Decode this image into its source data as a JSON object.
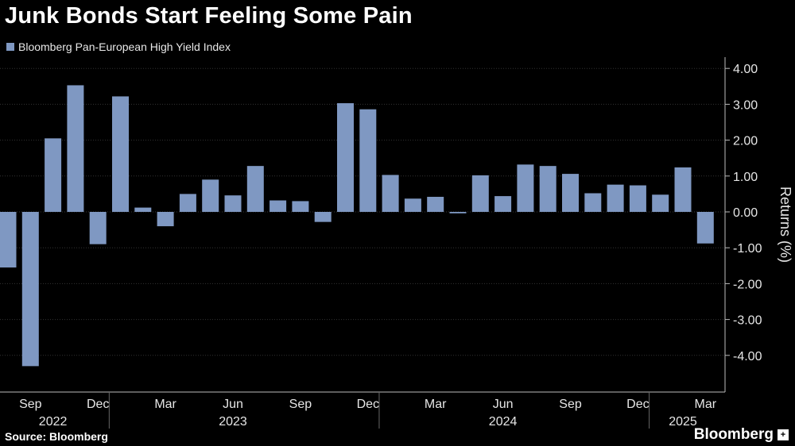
{
  "title": "Junk Bonds Start Feeling Some Pain",
  "legend": {
    "label": "Bloomberg Pan-European High Yield Index",
    "swatch_icon": "square-swatch"
  },
  "source": "Source: Bloomberg",
  "brand": {
    "name": "Bloomberg",
    "mark_glyph": "+"
  },
  "colors": {
    "background": "#000000",
    "bar": "#7f98c2",
    "grid": "#333333",
    "text": "#e6e6e6"
  },
  "chart_data": {
    "type": "bar",
    "title": "Junk Bonds Start Feeling Some Pain",
    "xlabel": "",
    "ylabel": "Returns (%)",
    "ylim": [
      -5,
      4.4
    ],
    "yticks": [
      4,
      3,
      2,
      1,
      0,
      -1,
      -2,
      -3,
      -4
    ],
    "ytick_labels": [
      "4.00",
      "3.00",
      "2.00",
      "1.00",
      "0.00",
      "-1.00",
      "-2.00",
      "-3.00",
      "-4.00"
    ],
    "grid": true,
    "categories": [
      "Aug 2022",
      "Sep 2022",
      "Oct 2022",
      "Nov 2022",
      "Dec 2022",
      "Jan 2023",
      "Feb 2023",
      "Mar 2023",
      "Apr 2023",
      "May 2023",
      "Jun 2023",
      "Jul 2023",
      "Aug 2023",
      "Sep 2023",
      "Oct 2023",
      "Nov 2023",
      "Dec 2023",
      "Jan 2024",
      "Feb 2024",
      "Mar 2024",
      "Apr 2024",
      "May 2024",
      "Jun 2024",
      "Jul 2024",
      "Aug 2024",
      "Sep 2024",
      "Oct 2024",
      "Nov 2024",
      "Dec 2024",
      "Jan 2025",
      "Feb 2025",
      "Mar 2025"
    ],
    "series": [
      {
        "name": "Bloomberg Pan-European High Yield Index",
        "values": [
          -1.55,
          -4.3,
          2.05,
          3.53,
          -0.9,
          3.22,
          0.12,
          -0.4,
          0.5,
          0.9,
          0.46,
          1.28,
          0.32,
          0.3,
          -0.28,
          3.03,
          2.86,
          1.03,
          0.37,
          0.42,
          -0.04,
          1.02,
          0.44,
          1.32,
          1.28,
          1.06,
          0.52,
          0.76,
          0.74,
          0.48,
          1.24,
          -0.88
        ]
      }
    ],
    "x_tick_labels": [
      {
        "index": 1,
        "label": "Sep"
      },
      {
        "index": 4,
        "label": "Dec"
      },
      {
        "index": 7,
        "label": "Mar"
      },
      {
        "index": 10,
        "label": "Jun"
      },
      {
        "index": 13,
        "label": "Sep"
      },
      {
        "index": 16,
        "label": "Dec"
      },
      {
        "index": 19,
        "label": "Mar"
      },
      {
        "index": 22,
        "label": "Jun"
      },
      {
        "index": 25,
        "label": "Sep"
      },
      {
        "index": 28,
        "label": "Dec"
      },
      {
        "index": 31,
        "label": "Mar"
      }
    ],
    "year_labels": [
      {
        "center_index": 2,
        "label": "2022"
      },
      {
        "center_index": 10,
        "label": "2023"
      },
      {
        "center_index": 22,
        "label": "2024"
      },
      {
        "center_index": 30,
        "label": "2025"
      }
    ],
    "year_dividers_before_index": [
      5,
      17,
      29
    ]
  }
}
